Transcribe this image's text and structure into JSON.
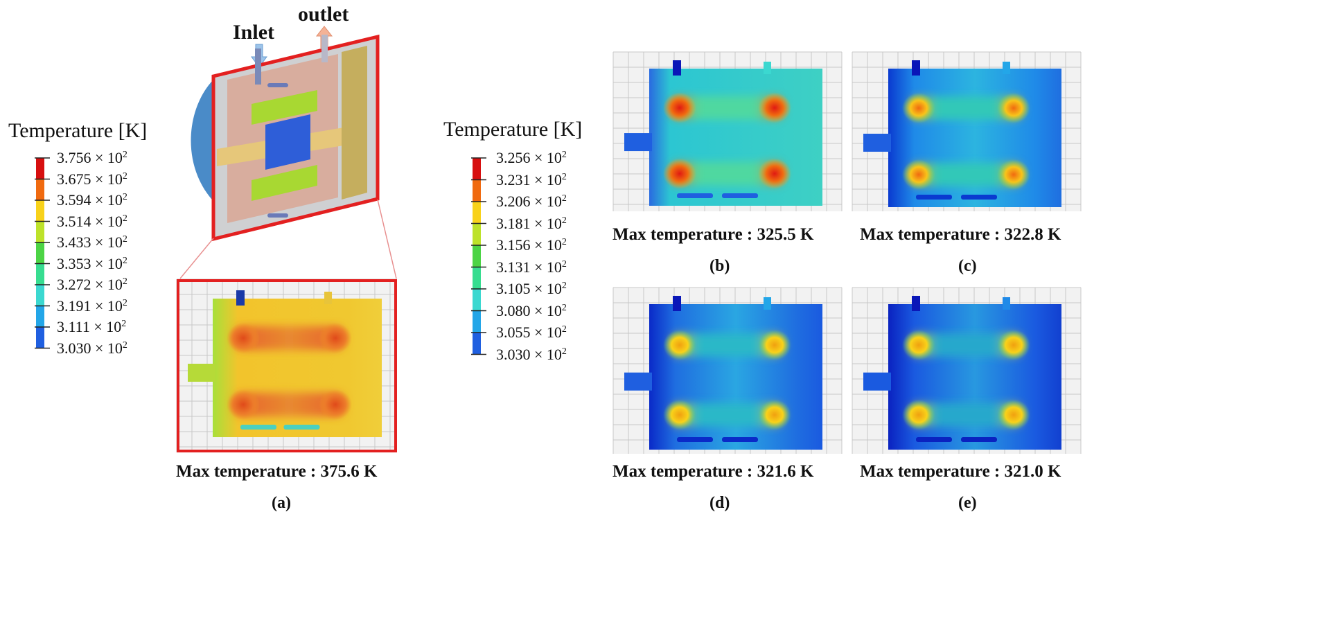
{
  "legend_left": {
    "title": "Temperature [K]",
    "exponent": "2",
    "ticks": [
      "3.756",
      "3.675",
      "3.594",
      "3.514",
      "3.433",
      "3.353",
      "3.272",
      "3.191",
      "3.111",
      "3.030"
    ],
    "colors": [
      "#d70f0f",
      "#f06a10",
      "#f8d21a",
      "#bde22a",
      "#4cd445",
      "#37dd90",
      "#3bd8d0",
      "#23a6e8",
      "#1f5fe0",
      "#0a17b8"
    ]
  },
  "legend_right": {
    "title": "Temperature [K]",
    "exponent": "2",
    "ticks": [
      "3.256",
      "3.231",
      "3.206",
      "3.181",
      "3.156",
      "3.131",
      "3.105",
      "3.080",
      "3.055",
      "3.030"
    ],
    "colors": [
      "#d70f0f",
      "#f06a10",
      "#f8d21a",
      "#bde22a",
      "#4cd445",
      "#37dd90",
      "#3bd8d0",
      "#23a6e8",
      "#1f5fe0",
      "#0a17b8"
    ]
  },
  "flow": {
    "inlet": "Inlet",
    "outlet": "outlet"
  },
  "panels": [
    {
      "id": "a",
      "label": "(a)",
      "caption": "Max temperature : 375.6 K"
    },
    {
      "id": "b",
      "label": "(b)",
      "caption": "Max temperature : 325.5 K"
    },
    {
      "id": "c",
      "label": "(c)",
      "caption": "Max temperature : 322.8 K"
    },
    {
      "id": "d",
      "label": "(d)",
      "caption": "Max temperature : 321.6 K"
    },
    {
      "id": "e",
      "label": "(e)",
      "caption": "Max temperature : 321.0 K"
    }
  ],
  "times_symbol": "×",
  "colors": {
    "frame_red": "#e32020",
    "grid_line": "#c8c8c8",
    "grid_bg": "#f2f2f2"
  }
}
